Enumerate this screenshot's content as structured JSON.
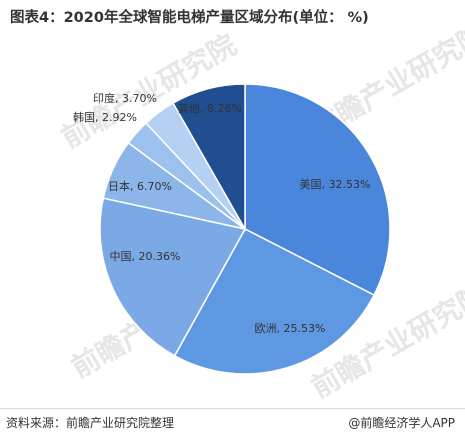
{
  "watermark": "前瞻产业研究院",
  "footer": {
    "source": "资料来源：前瞻产业研究院整理",
    "brand": "@前瞻经济学人APP"
  },
  "chart_data": {
    "type": "pie",
    "title": "图表4：2020年全球智能电梯产量区域分布(单位：  %)",
    "start_angle_deg": 0,
    "direction": "clockwise",
    "slices": [
      {
        "label": "美国",
        "value": 32.53,
        "display": "美国, 32.53%",
        "color": "#4a87dc",
        "label_color": "#222222"
      },
      {
        "label": "欧洲",
        "value": 25.53,
        "display": "欧洲, 25.53%",
        "color": "#5f98e2",
        "label_color": "#222222"
      },
      {
        "label": "中国",
        "value": 20.36,
        "display": "中国, 20.36%",
        "color": "#7aa9e6",
        "label_color": "#222222"
      },
      {
        "label": "日本",
        "value": 6.7,
        "display": "日本, 6.70%",
        "color": "#8cb6ea",
        "label_color": "#222222"
      },
      {
        "label": "韩国",
        "value": 2.92,
        "display": "韩国, 2.92%",
        "color": "#9cc1ee",
        "label_color": "#222222"
      },
      {
        "label": "印度",
        "value": 3.7,
        "display": "印度, 3.70%",
        "color": "#b4d0f2",
        "label_color": "#222222"
      },
      {
        "label": "其他",
        "value": 8.26,
        "display": "其他, 8.26%",
        "color": "#1f4e91",
        "label_color": "#111111"
      }
    ]
  }
}
